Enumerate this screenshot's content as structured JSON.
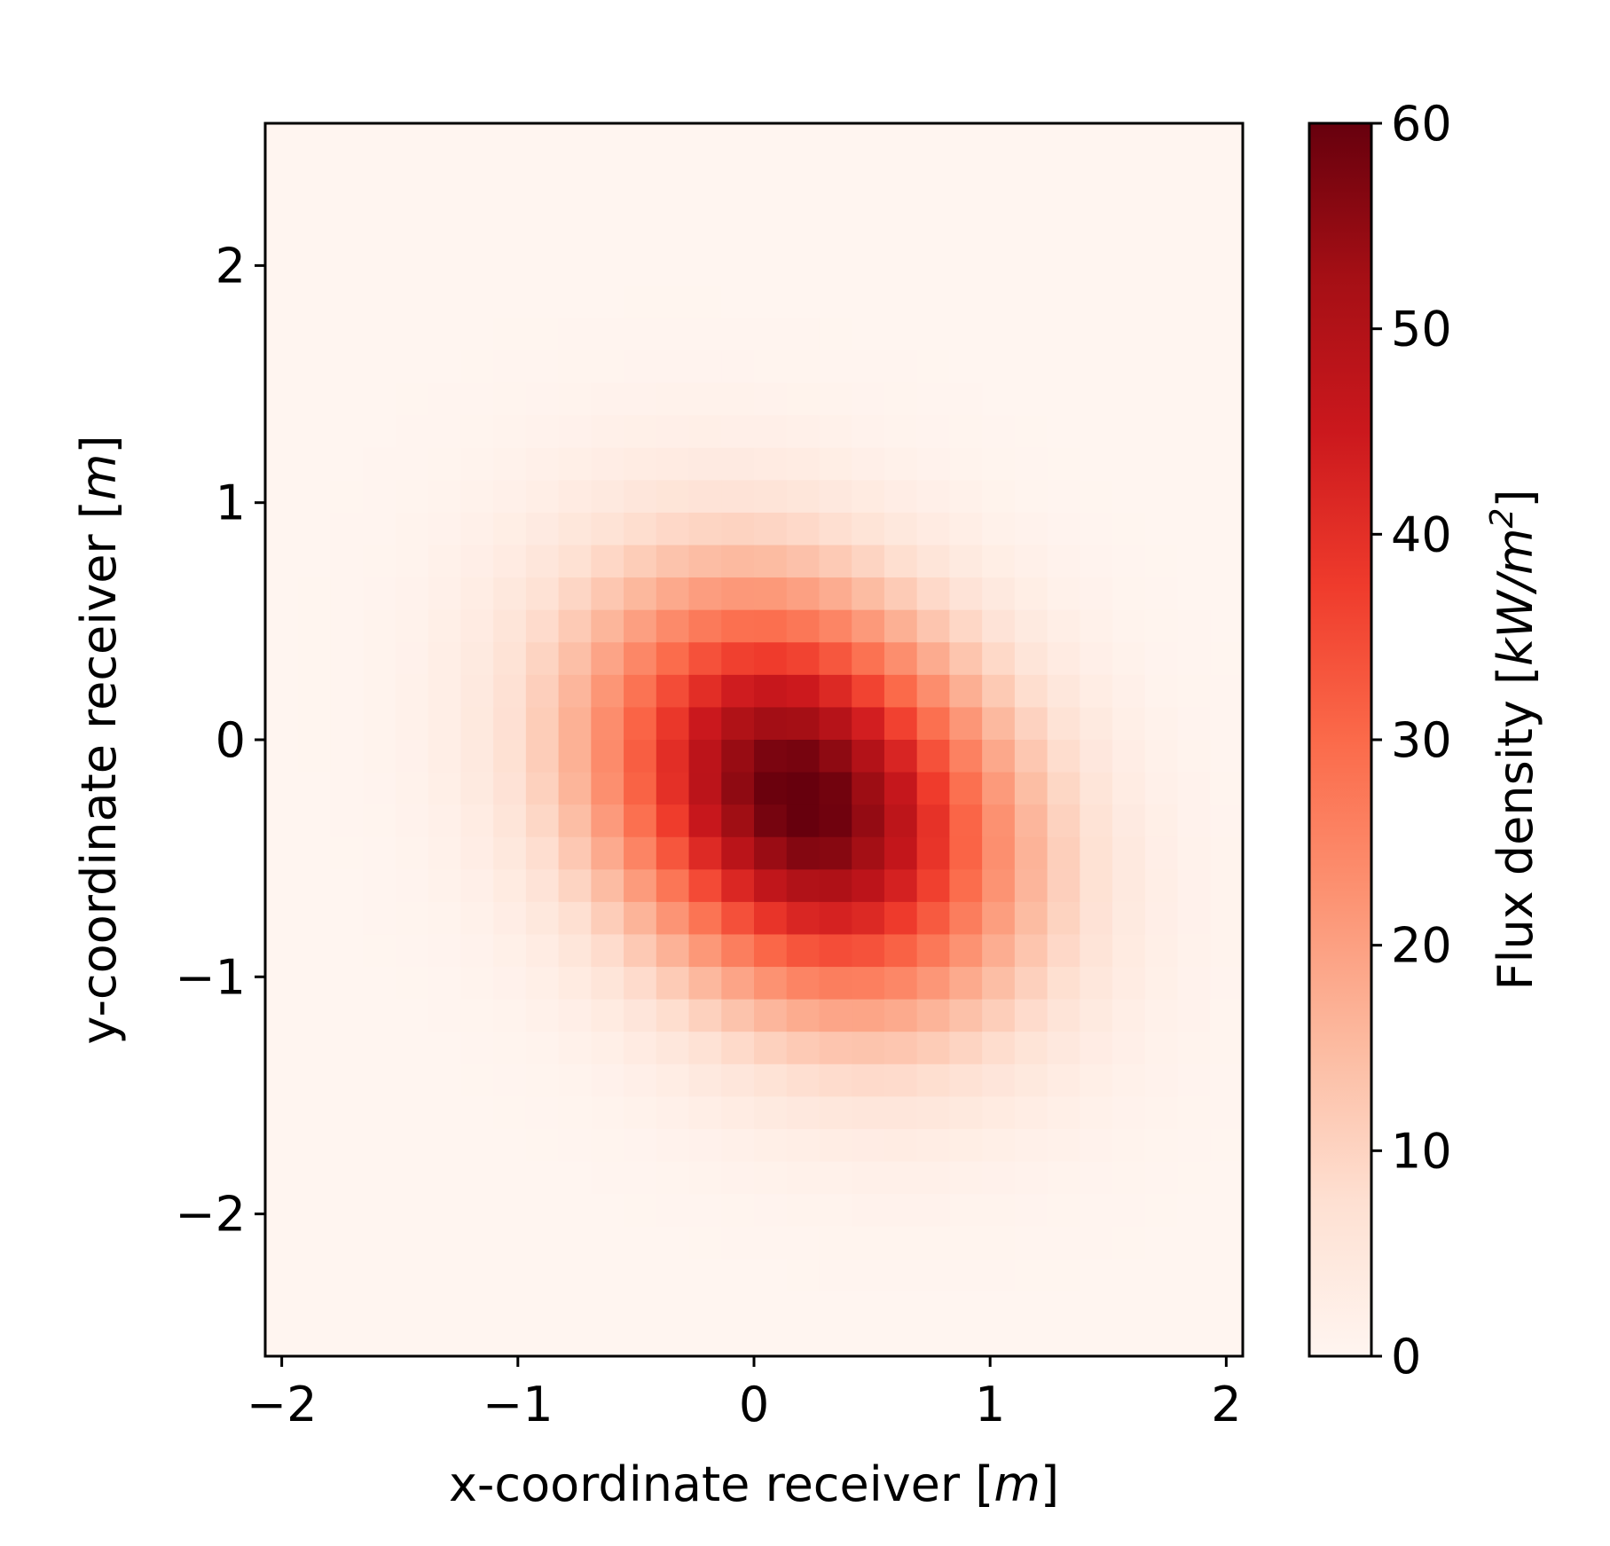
{
  "chart_data": {
    "type": "heatmap",
    "title": "",
    "xlabel": {
      "prefix": "x-coordinate receiver [",
      "unit": "m",
      "suffix": "]"
    },
    "ylabel": {
      "prefix": "y-coordinate receiver [",
      "unit": "m",
      "suffix": "]"
    },
    "colorbar_label": {
      "prefix": "Flux density [",
      "unit": "kW/m",
      "sup": "2",
      "suffix": "]"
    },
    "xlim": [
      -2.07,
      2.07
    ],
    "ylim": [
      -2.6,
      2.6
    ],
    "x_ticks": [
      -2,
      -1,
      0,
      1,
      2
    ],
    "x_tick_labels": [
      "−2",
      "−1",
      "0",
      "1",
      "2"
    ],
    "y_ticks": [
      -2,
      -1,
      0,
      1,
      2
    ],
    "y_tick_labels": [
      "−2",
      "−1",
      "0",
      "1",
      "2"
    ],
    "colorbar_range": [
      0,
      60
    ],
    "colorbar_ticks": [
      0,
      10,
      20,
      30,
      40,
      50,
      60
    ],
    "colorbar_tick_labels": [
      "0",
      "10",
      "20",
      "30",
      "40",
      "50",
      "60"
    ],
    "colormap": "Reds",
    "colormap_stops": [
      "#fff5f0",
      "#fee0d2",
      "#fcbba1",
      "#fc9272",
      "#fb6a4a",
      "#ef3b2c",
      "#cb181d",
      "#a50f15",
      "#67000d"
    ],
    "grid_cells": [
      30,
      38
    ],
    "peak": {
      "x": 0.2,
      "y": -0.25,
      "value": 61
    },
    "distribution": "tilted Gaussian flux spot, elongated from upper-left to lower-right",
    "grid": false,
    "legend": "colorbar-right"
  }
}
